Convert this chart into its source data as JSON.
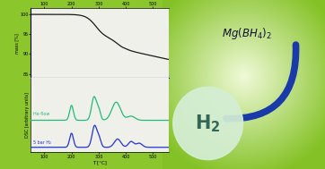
{
  "mass_line_color": "#1a1a1a",
  "dsc_he_color": "#22bb77",
  "dsc_h2_color": "#2233dd",
  "arrow_color": "#1a3aaa",
  "h2_circle_color": "#d5eed5",
  "h2_text_color": "#336655",
  "mgbh4_color": "#111133",
  "he_label": "He flow",
  "h2bar_label": "5 bar H₂",
  "xlabel": "T [°C]",
  "ylabel_mass": "mass [%]",
  "ylabel_dsc": "DSC [arbitrary units]",
  "xticks": [
    100,
    200,
    300,
    400,
    500
  ]
}
